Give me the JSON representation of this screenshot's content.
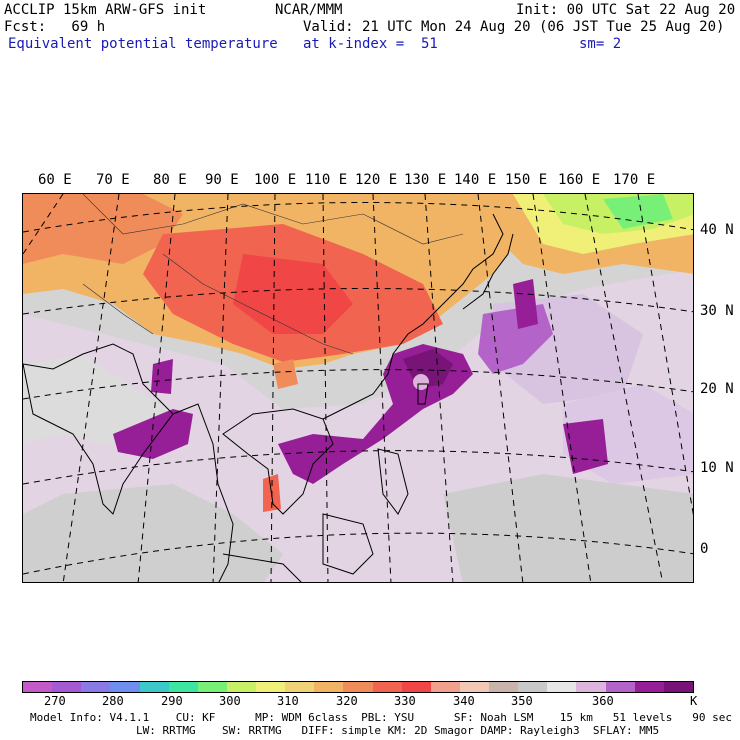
{
  "header": {
    "line1_left": "ACCLIP 15km ARW-GFS init",
    "line1_mid": "NCAR/MMM",
    "line1_right": "Init: 00 UTC Sat 22 Aug 20",
    "line2_left": "Fcst:   69 h",
    "line2_right": "Valid: 21 UTC Mon 24 Aug 20 (06 JST Tue 25 Aug 20)",
    "line3_left": "Equivalent potential temperature",
    "line3_mid": "at k-index =  51",
    "line3_right": "sm= 2"
  },
  "map": {
    "lon_labels": [
      "60 E",
      "70 E",
      "80 E",
      "90 E",
      "100 E",
      "110 E",
      "120 E",
      "130 E",
      "140 E",
      "150 E",
      "160 E",
      "170 E"
    ],
    "lat_labels": [
      "40 N",
      "30 N",
      "20 N",
      "10 N",
      "0"
    ]
  },
  "colorbar": {
    "colors": [
      "#c45ac8",
      "#a45ad2",
      "#8a7ae6",
      "#6e8ef0",
      "#3cc8c8",
      "#3ce6a0",
      "#78f078",
      "#c8f064",
      "#f0f078",
      "#f0d278",
      "#f0b464",
      "#f08c5a",
      "#f06450",
      "#f04646",
      "#f0a08c",
      "#f0c8b4",
      "#c8b4aa",
      "#c8c8c8",
      "#e6e6e6",
      "#dcb4dc",
      "#b464c8",
      "#961e96",
      "#781478"
    ],
    "labels": [
      "270",
      "280",
      "290",
      "300",
      "310",
      "320",
      "330",
      "340",
      "350",
      "360"
    ],
    "unit": "K"
  },
  "footer": {
    "line1": "Model Info: V4.1.1    CU: KF      MP: WDM 6class  PBL: YSU      SF: Noah LSM    15 km   51 levels   90 sec",
    "line2": "                LW: RRTMG    SW: RRTMG   DIFF: simple KM: 2D Smagor DAMP: Rayleigh3  SFLAY: MM5"
  }
}
